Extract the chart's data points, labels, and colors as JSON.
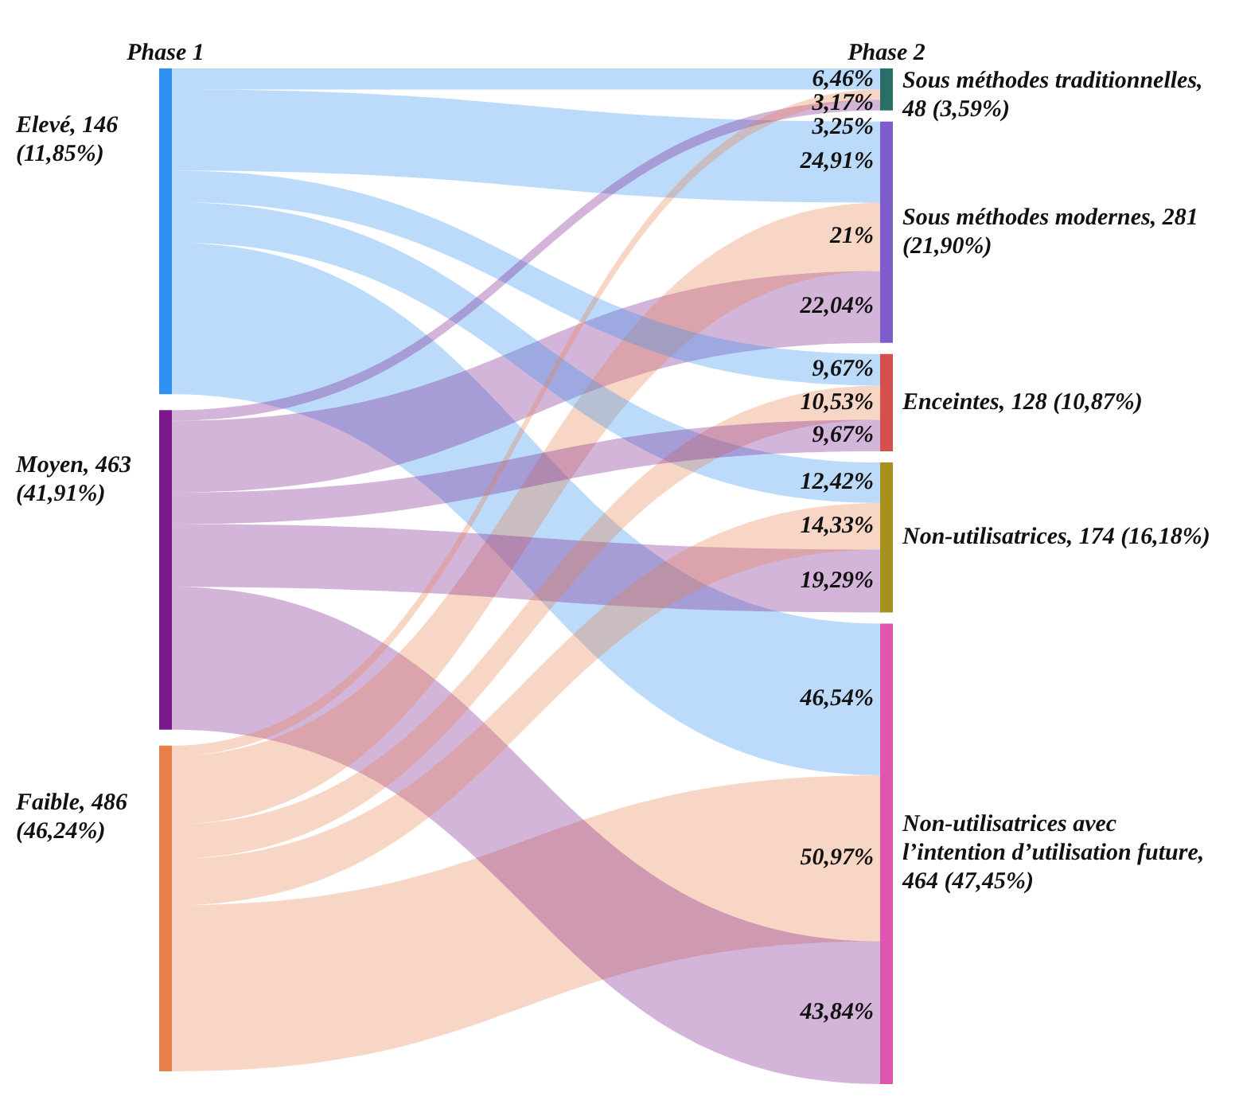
{
  "chart_data": {
    "type": "other",
    "annotations": [
      "Phase 1",
      "Phase 2"
    ],
    "categories": [
      "Sous méthodes traditionnelles, 48 (3,59%)",
      "Sous méthodes modernes, 281 (21,90%)",
      "Enceintes, 128 (10,87%)",
      "Non-utilisatrices, 174 (16,18%)",
      "Non-utilisatrices avec l’intention d’utilisation future, 464 (47,45%)"
    ],
    "colors": [
      "#2a6e68",
      "#7f5ccc",
      "#d5504c",
      "#a8901c",
      "#df55b0"
    ],
    "series": [
      {
        "name": "Elevé, 146 (11,85%)",
        "color": "#2e90f0",
        "values": [
          6.46,
          24.91,
          9.67,
          12.42,
          46.54
        ],
        "value_labels": [
          "6,46%",
          "24,91%",
          "9,67%",
          "12,42%",
          "46,54%"
        ]
      },
      {
        "name": "Moyen, 463 (41,91%)",
        "color": "#7a1a8c",
        "values": [
          3.25,
          22.04,
          9.67,
          19.29,
          43.84
        ],
        "value_labels": [
          "3,25%",
          "22,04%",
          "9,67%",
          "19,29%",
          "43,84%"
        ]
      },
      {
        "name": "Faible, 486 (46,24%)",
        "color": "#e8804a",
        "values": [
          3.17,
          21,
          10.53,
          14.33,
          50.97
        ],
        "value_labels": [
          "3,17%",
          "21%",
          "10,53%",
          "14,33%",
          "50,97%"
        ]
      }
    ]
  }
}
